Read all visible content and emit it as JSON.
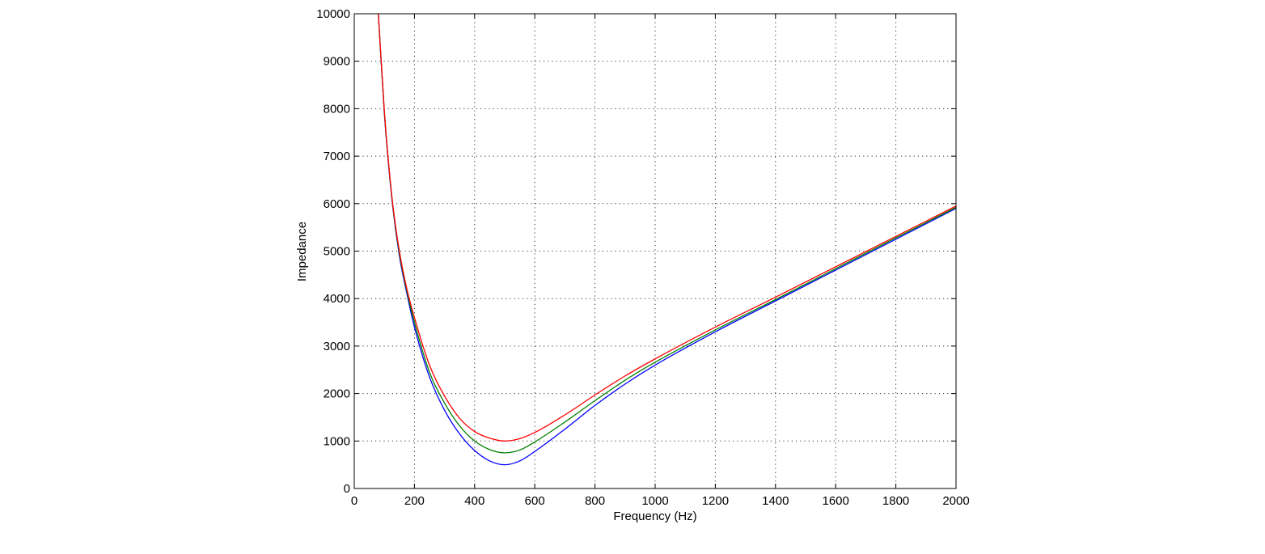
{
  "chart_data": {
    "type": "line",
    "title": "",
    "xlabel": "Frequency (Hz)",
    "ylabel": "Impedance",
    "xlim": [
      0,
      2000
    ],
    "ylim": [
      0,
      10000
    ],
    "xticks": [
      0,
      200,
      400,
      600,
      800,
      1000,
      1200,
      1400,
      1600,
      1800,
      2000
    ],
    "yticks": [
      0,
      1000,
      2000,
      3000,
      4000,
      5000,
      6000,
      7000,
      8000,
      9000,
      10000
    ],
    "grid": true,
    "series": [
      {
        "color": "#0000ff",
        "points": [
          [
            80,
            10000
          ],
          [
            100,
            7900
          ],
          [
            125,
            6100
          ],
          [
            150,
            4900
          ],
          [
            175,
            4100
          ],
          [
            200,
            3400
          ],
          [
            250,
            2350
          ],
          [
            300,
            1650
          ],
          [
            350,
            1150
          ],
          [
            400,
            800
          ],
          [
            450,
            580
          ],
          [
            500,
            500
          ],
          [
            550,
            580
          ],
          [
            600,
            780
          ],
          [
            700,
            1250
          ],
          [
            800,
            1750
          ],
          [
            900,
            2200
          ],
          [
            1000,
            2600
          ],
          [
            1200,
            3300
          ],
          [
            1400,
            3950
          ],
          [
            1600,
            4600
          ],
          [
            1800,
            5250
          ],
          [
            2000,
            5900
          ]
        ]
      },
      {
        "color": "#008000",
        "points": [
          [
            80,
            10000
          ],
          [
            100,
            7920
          ],
          [
            125,
            6130
          ],
          [
            150,
            4950
          ],
          [
            175,
            4150
          ],
          [
            200,
            3500
          ],
          [
            250,
            2450
          ],
          [
            300,
            1800
          ],
          [
            350,
            1320
          ],
          [
            400,
            1000
          ],
          [
            450,
            820
          ],
          [
            500,
            750
          ],
          [
            550,
            810
          ],
          [
            600,
            980
          ],
          [
            700,
            1400
          ],
          [
            800,
            1850
          ],
          [
            900,
            2280
          ],
          [
            1000,
            2660
          ],
          [
            1200,
            3340
          ],
          [
            1400,
            3980
          ],
          [
            1600,
            4630
          ],
          [
            1800,
            5280
          ],
          [
            2000,
            5920
          ]
        ]
      },
      {
        "color": "#ff0000",
        "points": [
          [
            80,
            10000
          ],
          [
            100,
            7950
          ],
          [
            125,
            6150
          ],
          [
            150,
            5000
          ],
          [
            175,
            4200
          ],
          [
            200,
            3600
          ],
          [
            250,
            2600
          ],
          [
            300,
            1950
          ],
          [
            350,
            1480
          ],
          [
            400,
            1200
          ],
          [
            450,
            1060
          ],
          [
            500,
            1000
          ],
          [
            550,
            1050
          ],
          [
            600,
            1180
          ],
          [
            700,
            1550
          ],
          [
            800,
            1970
          ],
          [
            900,
            2370
          ],
          [
            1000,
            2730
          ],
          [
            1200,
            3400
          ],
          [
            1400,
            4030
          ],
          [
            1600,
            4670
          ],
          [
            1800,
            5310
          ],
          [
            2000,
            5950
          ]
        ]
      }
    ]
  }
}
